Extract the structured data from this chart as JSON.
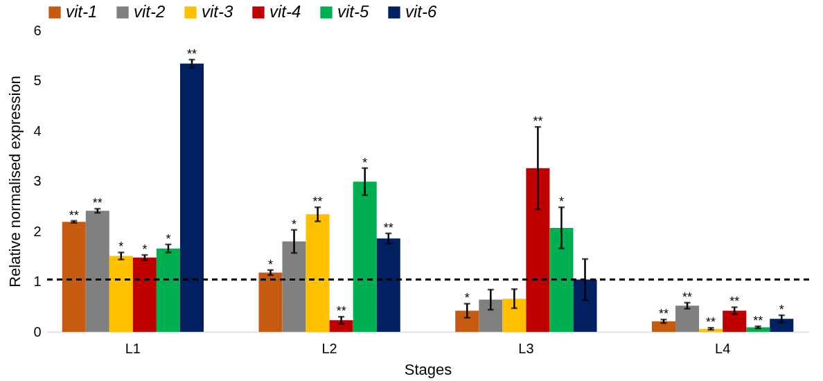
{
  "chart_data": {
    "type": "bar",
    "xlabel": "Stages",
    "ylabel": "Relative normalised expression",
    "categories": [
      "L1",
      "L2",
      "L3",
      "L4"
    ],
    "series": [
      {
        "name": "vit-1",
        "color": "#c55a11",
        "values": [
          2.19,
          1.18,
          0.42,
          0.21
        ],
        "errors": [
          0.02,
          0.05,
          0.14,
          0.035
        ],
        "value_labels": [
          "**",
          "*",
          "*",
          "**"
        ]
      },
      {
        "name": "vit-2",
        "color": "#808080",
        "values": [
          2.41,
          1.8,
          0.64,
          0.52
        ],
        "errors": [
          0.04,
          0.23,
          0.2,
          0.06
        ],
        "value_labels": [
          "**",
          "*",
          null,
          "**"
        ]
      },
      {
        "name": "vit-3",
        "color": "#ffc000",
        "values": [
          1.51,
          2.34,
          0.66,
          0.06
        ],
        "errors": [
          0.07,
          0.14,
          0.19,
          0.02
        ],
        "value_labels": [
          "*",
          "**",
          null,
          "**"
        ]
      },
      {
        "name": "vit-4",
        "color": "#c00000",
        "values": [
          1.48,
          0.23,
          3.26,
          0.42
        ],
        "errors": [
          0.05,
          0.07,
          0.82,
          0.07
        ],
        "value_labels": [
          "*",
          "**",
          "**",
          "**"
        ]
      },
      {
        "name": "vit-5",
        "color": "#00b050",
        "values": [
          1.66,
          2.99,
          2.07,
          0.09
        ],
        "errors": [
          0.08,
          0.27,
          0.41,
          0.02
        ],
        "value_labels": [
          "*",
          "*",
          "*",
          "**"
        ]
      },
      {
        "name": "vit-6",
        "color": "#002060",
        "values": [
          5.34,
          1.86,
          1.04,
          0.26
        ],
        "errors": [
          0.08,
          0.1,
          0.41,
          0.07
        ],
        "value_labels": [
          "**",
          "**",
          null,
          "*"
        ]
      }
    ],
    "ylim": [
      0,
      6
    ],
    "yticks": [
      0,
      1,
      2,
      3,
      4,
      5,
      6
    ],
    "ref_lines": [
      {
        "axis": "y",
        "value": 1.04,
        "color": "#000000",
        "line_style": "dashed"
      }
    ],
    "grid": false,
    "legend": "top"
  }
}
